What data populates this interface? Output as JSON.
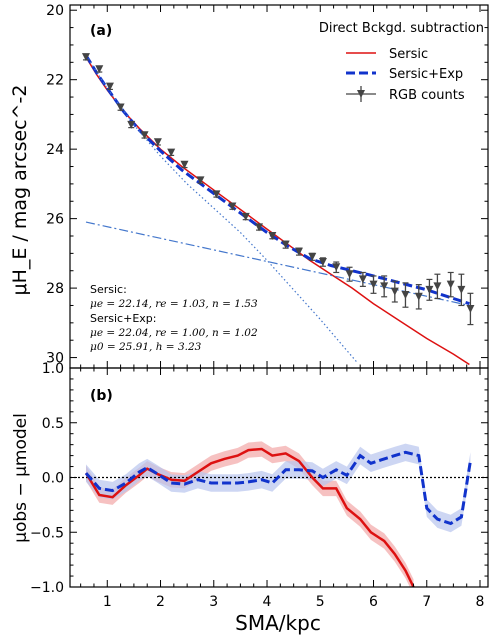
{
  "panels": {
    "a": {
      "label": "(a)"
    },
    "b": {
      "label": "(b)"
    }
  },
  "legend": {
    "title": "Direct Bckgd. subtraction",
    "entries": [
      "Sersic",
      "Sersic+Exp",
      "RGB counts"
    ]
  },
  "annotation": {
    "sersic_title": "Sersic:",
    "sersic_params": "μe = 22.14, re = 1.03, n = 1.53",
    "combo_title": "Sersic+Exp:",
    "combo_params1": "μe = 22.04, re = 1.00, n = 1.02",
    "combo_params2": "μ0 = 25.91, h = 3.23"
  },
  "colors": {
    "sersic": "#dd1111",
    "sersic_exp": "#1133cc",
    "component": "#4477cc",
    "data": "#444444",
    "red_band": "#f2a6a6",
    "blue_band": "#b8c4ee"
  },
  "chart_data": [
    {
      "type": "line",
      "panel": "a",
      "xlabel": "",
      "ylabel": "μH_E / mag arcsec^-2",
      "xlim": [
        0.3,
        8.15
      ],
      "ylim": [
        30.3,
        19.85
      ],
      "y_inverted": true,
      "yticks": [
        20,
        22,
        24,
        26,
        28,
        30
      ],
      "series": [
        {
          "name": "RGB counts",
          "kind": "errorbar",
          "x": [
            0.6,
            0.85,
            1.05,
            1.25,
            1.45,
            1.7,
            1.95,
            2.2,
            2.45,
            2.75,
            3.05,
            3.35,
            3.6,
            3.85,
            4.1,
            4.35,
            4.6,
            4.85,
            5.05,
            5.3,
            5.55,
            5.8,
            6.0,
            6.2,
            6.4,
            6.6,
            6.85,
            7.05,
            7.2,
            7.45,
            7.65,
            7.82
          ],
          "y": [
            21.35,
            21.7,
            22.2,
            22.8,
            23.3,
            23.6,
            23.8,
            24.1,
            24.45,
            24.9,
            25.3,
            25.65,
            25.95,
            26.25,
            26.5,
            26.75,
            26.95,
            27.1,
            27.25,
            27.4,
            27.6,
            27.75,
            27.9,
            27.95,
            28.1,
            28.2,
            28.25,
            28.05,
            27.95,
            27.9,
            28.05,
            28.6
          ],
          "yerr": [
            0.08,
            0.08,
            0.08,
            0.08,
            0.08,
            0.08,
            0.08,
            0.08,
            0.08,
            0.08,
            0.08,
            0.08,
            0.08,
            0.08,
            0.08,
            0.1,
            0.1,
            0.1,
            0.12,
            0.15,
            0.2,
            0.2,
            0.25,
            0.3,
            0.3,
            0.35,
            0.35,
            0.3,
            0.35,
            0.35,
            0.45,
            0.45
          ]
        },
        {
          "name": "Sersic",
          "kind": "line",
          "x": [
            0.6,
            0.8,
            1.0,
            1.3,
            1.6,
            2.0,
            2.4,
            2.8,
            3.2,
            3.6,
            4.0,
            4.4,
            4.8,
            5.2,
            5.6,
            6.0,
            6.5,
            7.0,
            7.5,
            7.8
          ],
          "y": [
            21.35,
            21.85,
            22.3,
            22.9,
            23.4,
            24.0,
            24.5,
            24.95,
            25.4,
            25.85,
            26.3,
            26.75,
            27.2,
            27.6,
            28.0,
            28.45,
            28.95,
            29.45,
            29.9,
            30.2
          ]
        },
        {
          "name": "Sersic+Exp",
          "kind": "line",
          "x": [
            0.6,
            0.8,
            1.0,
            1.3,
            1.6,
            2.0,
            2.4,
            2.8,
            3.2,
            3.6,
            4.0,
            4.4,
            4.8,
            5.2,
            5.6,
            6.0,
            6.5,
            7.0,
            7.5,
            7.8
          ],
          "y": [
            21.3,
            21.8,
            22.25,
            22.9,
            23.45,
            24.05,
            24.6,
            25.05,
            25.5,
            25.95,
            26.4,
            26.8,
            27.15,
            27.35,
            27.5,
            27.65,
            27.85,
            28.05,
            28.3,
            28.45
          ]
        },
        {
          "name": "Sersic component",
          "kind": "line",
          "x": [
            0.6,
            1.0,
            1.5,
            2.0,
            2.5,
            3.0,
            3.5,
            4.0,
            4.5,
            5.0,
            5.5,
            5.7
          ],
          "y": [
            21.3,
            22.25,
            23.3,
            24.2,
            25.0,
            25.7,
            26.4,
            27.2,
            28.05,
            28.9,
            29.8,
            30.15
          ]
        },
        {
          "name": "Exp component",
          "kind": "line",
          "x": [
            0.6,
            7.8
          ],
          "y": [
            26.1,
            28.5
          ]
        }
      ]
    },
    {
      "type": "line",
      "panel": "b",
      "xlabel": "SMA/kpc",
      "ylabel": "μobs − μmodel",
      "xlim": [
        0.3,
        8.15
      ],
      "ylim": [
        -1.0,
        1.0
      ],
      "xticks": [
        1,
        2,
        3,
        4,
        5,
        6,
        7,
        8
      ],
      "yticks": [
        -1.0,
        -0.5,
        0.0,
        0.5,
        1.0
      ],
      "series": [
        {
          "name": "Sersic residual",
          "x": [
            0.6,
            0.85,
            1.1,
            1.35,
            1.6,
            1.75,
            1.95,
            2.2,
            2.45,
            2.7,
            2.95,
            3.2,
            3.45,
            3.65,
            3.9,
            4.1,
            4.35,
            4.6,
            4.85,
            5.05,
            5.3,
            5.5,
            5.75,
            5.95,
            6.2,
            6.4,
            6.6,
            6.75
          ],
          "y": [
            0.04,
            -0.16,
            -0.18,
            -0.07,
            0.02,
            0.08,
            0.03,
            -0.02,
            -0.03,
            0.05,
            0.13,
            0.17,
            0.2,
            0.25,
            0.26,
            0.2,
            0.22,
            0.15,
            0.0,
            -0.1,
            -0.1,
            -0.28,
            -0.38,
            -0.5,
            -0.58,
            -0.7,
            -0.85,
            -1.0
          ],
          "band": 0.07
        },
        {
          "name": "Sersic+Exp residual",
          "x": [
            0.6,
            0.85,
            1.1,
            1.35,
            1.6,
            1.75,
            1.95,
            2.2,
            2.45,
            2.7,
            2.95,
            3.2,
            3.45,
            3.65,
            3.9,
            4.1,
            4.35,
            4.6,
            4.85,
            5.05,
            5.3,
            5.5,
            5.75,
            5.95,
            6.2,
            6.4,
            6.6,
            6.85,
            7.0,
            7.2,
            7.45,
            7.65,
            7.82
          ],
          "y": [
            0.04,
            -0.1,
            -0.12,
            -0.05,
            0.05,
            0.09,
            0.03,
            -0.05,
            -0.06,
            -0.02,
            -0.05,
            -0.05,
            -0.05,
            -0.04,
            -0.02,
            -0.05,
            0.07,
            0.07,
            0.06,
            0.0,
            0.07,
            0.02,
            0.2,
            0.13,
            0.17,
            0.2,
            0.23,
            0.2,
            -0.28,
            -0.38,
            -0.42,
            -0.36,
            0.15
          ],
          "band": 0.08
        }
      ]
    }
  ]
}
